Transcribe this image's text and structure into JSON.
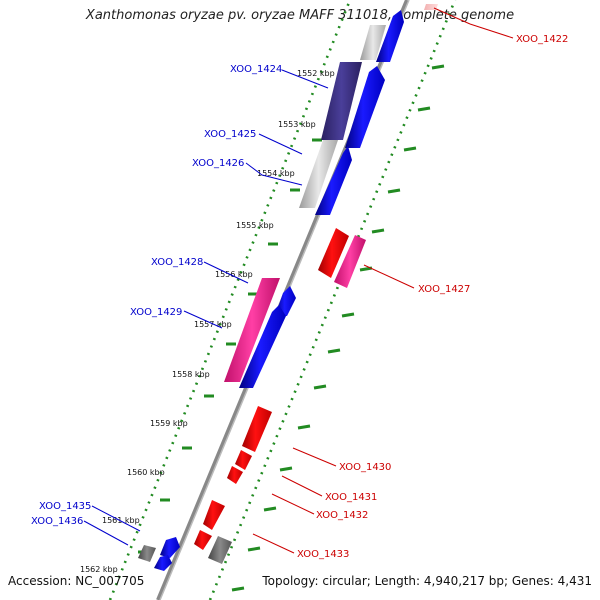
{
  "title": "Xanthomonas oryzae pv. oryzae MAFF 311018, complete genome",
  "accession_text": "Accession: NC_007705",
  "summary_text": "Topology: circular; Length: 4,940,217 bp; Genes: 4,431",
  "colors": {
    "forward_label": "#0000cc",
    "reverse_label": "#cc0000",
    "backbone": "#888888",
    "ring": "#228b22"
  },
  "chart_data": {
    "type": "genome-map",
    "position_unit": "kbp",
    "kbp_ticks": [
      "1552 kbp",
      "1553 kbp",
      "1554 kbp",
      "1555 kbp",
      "1556 kbp",
      "1557 kbp",
      "1558 kbp",
      "1559 kbp",
      "1560 kbp",
      "1561 kbp",
      "1562 kbp"
    ],
    "gene_labels": [
      {
        "name": "XOO_1422",
        "strand": "reverse"
      },
      {
        "name": "XOO_1424",
        "strand": "forward"
      },
      {
        "name": "XOO_1425",
        "strand": "forward"
      },
      {
        "name": "XOO_1426",
        "strand": "forward"
      },
      {
        "name": "XOO_1427",
        "strand": "reverse"
      },
      {
        "name": "XOO_1428",
        "strand": "forward"
      },
      {
        "name": "XOO_1429",
        "strand": "forward"
      },
      {
        "name": "XOO_1430",
        "strand": "reverse"
      },
      {
        "name": "XOO_1431",
        "strand": "reverse"
      },
      {
        "name": "XOO_1432",
        "strand": "reverse"
      },
      {
        "name": "XOO_1433",
        "strand": "reverse"
      },
      {
        "name": "XOO_1435",
        "strand": "forward"
      },
      {
        "name": "XOO_1436",
        "strand": "forward"
      }
    ]
  }
}
